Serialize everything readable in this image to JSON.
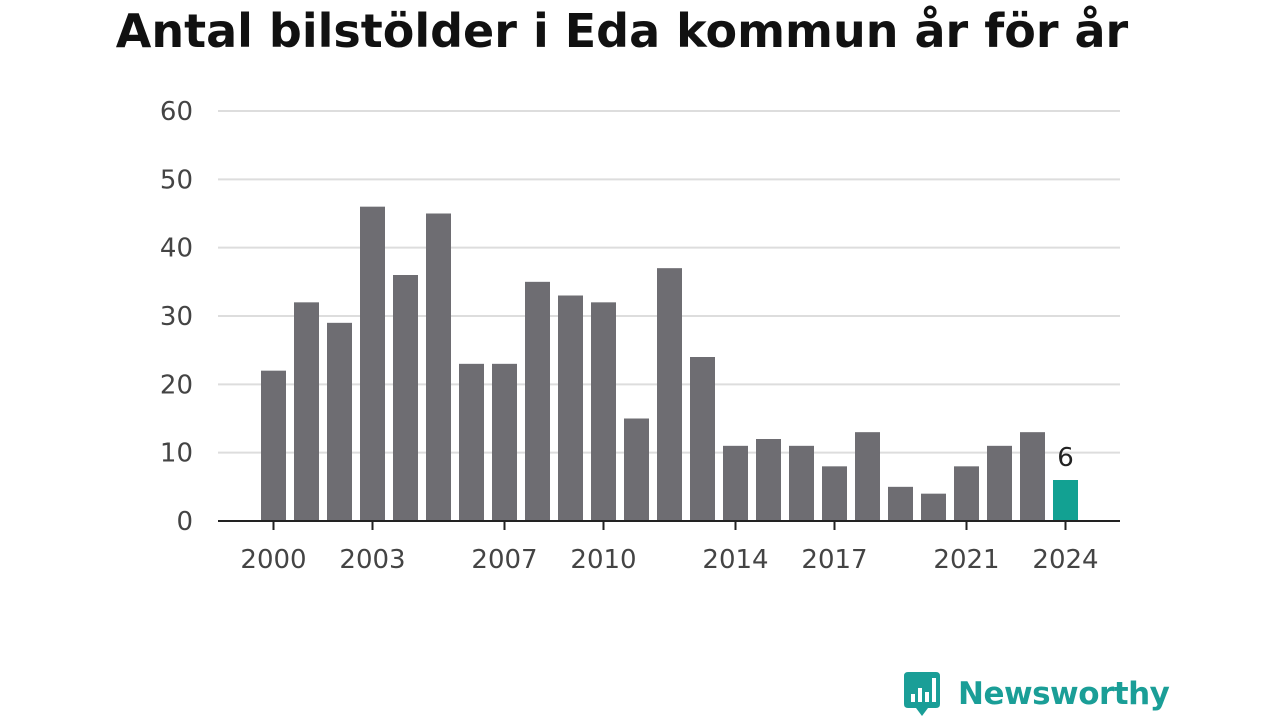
{
  "header": {
    "title": "Antal bilstölder i Eda kommun år för år"
  },
  "brand": {
    "name": "Newsworthy",
    "logo_icon": "newsworthy-bar-chart-speech-bubble-icon",
    "color": "#1a9e97"
  },
  "chart_data": {
    "type": "bar",
    "title": "Antal bilstölder i Eda kommun år för år",
    "xlabel": "",
    "ylabel": "",
    "categories": [
      "2000",
      "2001",
      "2002",
      "2003",
      "2004",
      "2005",
      "2006",
      "2007",
      "2008",
      "2009",
      "2010",
      "2011",
      "2012",
      "2013",
      "2014",
      "2015",
      "2016",
      "2017",
      "2018",
      "2019",
      "2020",
      "2021",
      "2022",
      "2023",
      "2024"
    ],
    "values": [
      22,
      32,
      29,
      46,
      36,
      45,
      23,
      23,
      35,
      33,
      32,
      15,
      37,
      24,
      11,
      12,
      11,
      8,
      13,
      5,
      4,
      8,
      11,
      13,
      6
    ],
    "ylim": [
      0,
      60
    ],
    "yticks": [
      0,
      10,
      20,
      30,
      40,
      50,
      60
    ],
    "xtick_labels": [
      "2000",
      "2003",
      "2007",
      "2010",
      "2014",
      "2017",
      "2021",
      "2024"
    ],
    "grid": "horizontal",
    "bar_color": "#6e6d72",
    "highlight": {
      "category": "2024",
      "color": "#12a192",
      "label": "6"
    }
  }
}
